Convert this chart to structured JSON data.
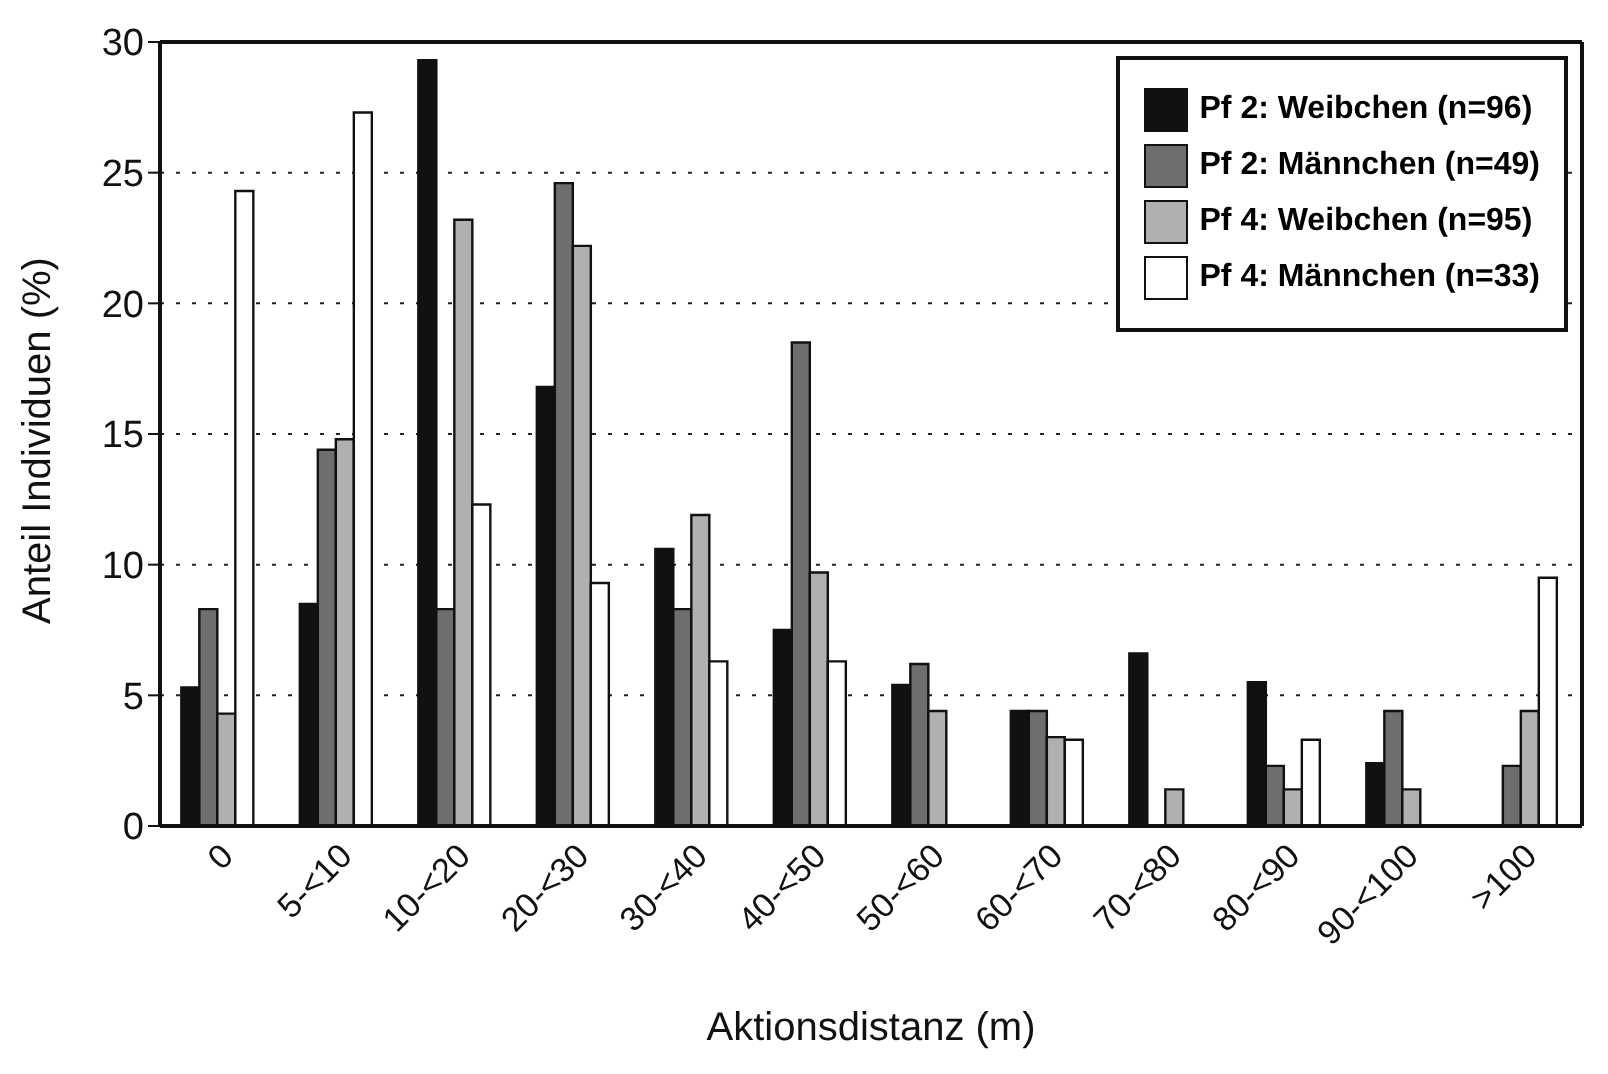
{
  "chart_data": {
    "type": "bar",
    "xlabel": "Aktionsdistanz (m)",
    "ylabel": "Anteil Individuen (%)",
    "categories": [
      "0",
      "5-<10",
      "10-<20",
      "20-<30",
      "30-<40",
      "40-<50",
      "50-<60",
      "60-<70",
      "70-<80",
      "80-<90",
      "90-<100",
      ">100"
    ],
    "series": [
      {
        "name": "Pf 2: Weibchen (n=96)",
        "color": "#111111",
        "values": [
          5.3,
          8.5,
          29.3,
          16.8,
          10.6,
          7.5,
          5.4,
          4.4,
          6.6,
          5.5,
          2.4,
          0
        ]
      },
      {
        "name": "Pf 2: Männchen (n=49)",
        "color": "#6e6e6e",
        "values": [
          8.3,
          14.4,
          8.3,
          24.6,
          8.3,
          18.5,
          6.2,
          4.4,
          0,
          2.3,
          4.4,
          2.3
        ]
      },
      {
        "name": "Pf 4: Weibchen (n=95)",
        "color": "#b0b0b0",
        "values": [
          4.3,
          14.8,
          23.2,
          22.2,
          11.9,
          9.7,
          4.4,
          3.4,
          1.4,
          1.4,
          1.4,
          4.4
        ]
      },
      {
        "name": "Pf 4: Männchen (n=33)",
        "color": "#ffffff",
        "values": [
          24.3,
          27.3,
          12.3,
          9.3,
          6.3,
          6.3,
          0,
          3.3,
          0,
          3.3,
          0,
          9.5
        ]
      }
    ],
    "ylim": [
      0,
      30
    ],
    "yticks": [
      0,
      5,
      10,
      15,
      20,
      25,
      30
    ],
    "grid": "y",
    "legend": "top right"
  }
}
